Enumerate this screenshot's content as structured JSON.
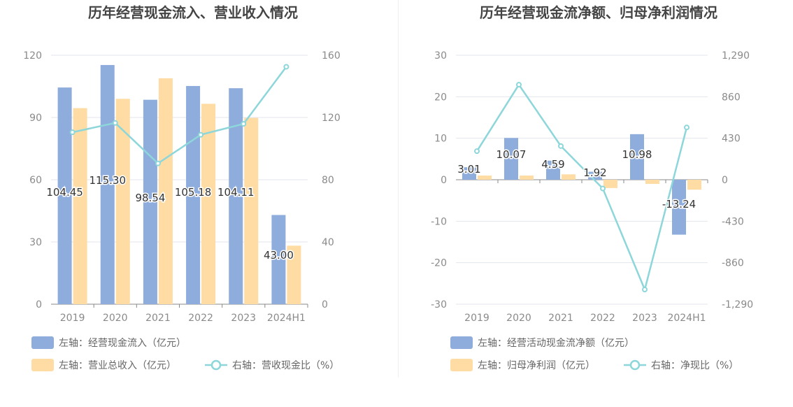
{
  "colors": {
    "bar_primary": "#8eacdc",
    "bar_secondary": "#fedca3",
    "line": "#8dd6da",
    "grid": "#e3e6ee",
    "axis_text": "#8a8a8a",
    "title_text": "#444444",
    "legend_text": "#666666"
  },
  "chart_data": [
    {
      "type": "bar",
      "title": "历年经营现金流入、营业收入情况",
      "categories": [
        "2019",
        "2020",
        "2021",
        "2022",
        "2023",
        "2024H1"
      ],
      "y_left": {
        "ticks": [
          "0",
          "30",
          "60",
          "90",
          "120"
        ],
        "min": 0,
        "max": 120
      },
      "y_right": {
        "ticks": [
          "0",
          "40",
          "80",
          "120",
          "160"
        ],
        "min": 0,
        "max": 160
      },
      "series": [
        {
          "name": "左轴：经营现金流入（亿元）",
          "kind": "bar",
          "axis": "left",
          "values": [
            104.45,
            115.3,
            98.54,
            105.18,
            104.11,
            43.0
          ],
          "labels": [
            "104.45",
            "115.30",
            "98.54",
            "105.18",
            "104.11",
            "43.00"
          ]
        },
        {
          "name": "左轴：营业总收入（亿元）",
          "kind": "bar",
          "axis": "left",
          "values": [
            94.5,
            99.0,
            108.9,
            96.6,
            89.8,
            28.2
          ]
        },
        {
          "name": "右轴：营收现金比（%）",
          "kind": "line",
          "axis": "right",
          "values": [
            110.5,
            116.5,
            90.5,
            108.9,
            115.9,
            152.6
          ]
        }
      ],
      "legend": "bottom-left",
      "grid": true
    },
    {
      "type": "bar",
      "title": "历年经营现金流净额、归母净利润情况",
      "categories": [
        "2019",
        "2020",
        "2021",
        "2022",
        "2023",
        "2024H1"
      ],
      "y_left": {
        "ticks": [
          "-30",
          "-20",
          "-10",
          "0",
          "10",
          "20",
          "30"
        ],
        "min": -30,
        "max": 30
      },
      "y_right": {
        "ticks": [
          "-1,290",
          "-860",
          "-430",
          "0",
          "430",
          "860",
          "1,290"
        ],
        "min": -1290,
        "max": 1290
      },
      "series": [
        {
          "name": "左轴：经营活动现金流净额（亿元）",
          "kind": "bar",
          "axis": "left",
          "values": [
            3.01,
            10.07,
            4.59,
            1.92,
            10.98,
            -13.24
          ],
          "labels": [
            "3.01",
            "10.07",
            "4.59",
            "1.92",
            "10.98",
            "-13.24"
          ]
        },
        {
          "name": "左轴：归母净利润（亿元）",
          "kind": "bar",
          "axis": "left",
          "values": [
            1.0,
            1.0,
            1.3,
            -2.0,
            -1.0,
            -2.4
          ]
        },
        {
          "name": "右轴：净现比（%）",
          "kind": "line",
          "axis": "right",
          "values": [
            296,
            985,
            349,
            -91,
            -1138,
            542
          ]
        }
      ],
      "legend": "bottom-left",
      "grid": true
    }
  ]
}
